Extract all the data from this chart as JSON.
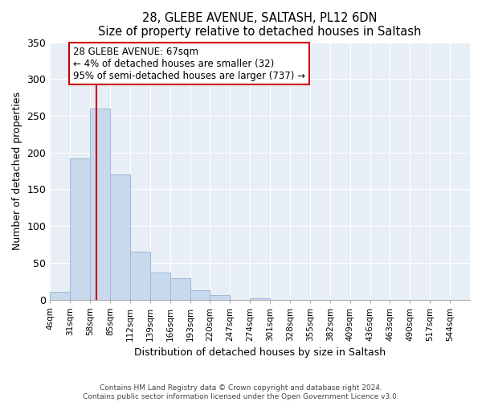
{
  "title": "28, GLEBE AVENUE, SALTASH, PL12 6DN",
  "subtitle": "Size of property relative to detached houses in Saltash",
  "xlabel": "Distribution of detached houses by size in Saltash",
  "ylabel": "Number of detached properties",
  "bin_labels": [
    "4sqm",
    "31sqm",
    "58sqm",
    "85sqm",
    "112sqm",
    "139sqm",
    "166sqm",
    "193sqm",
    "220sqm",
    "247sqm",
    "274sqm",
    "301sqm",
    "328sqm",
    "355sqm",
    "382sqm",
    "409sqm",
    "436sqm",
    "463sqm",
    "490sqm",
    "517sqm",
    "544sqm"
  ],
  "bar_heights": [
    10,
    192,
    260,
    170,
    65,
    37,
    29,
    13,
    6,
    0,
    2,
    0,
    0,
    0,
    0,
    0,
    0,
    0,
    0,
    0,
    0
  ],
  "bar_color": "#c8d9ed",
  "bar_edge_color": "#a0b8d8",
  "bg_color": "#e8eef5",
  "ylim": [
    0,
    350
  ],
  "yticks": [
    0,
    50,
    100,
    150,
    200,
    250,
    300,
    350
  ],
  "vline_x": 67,
  "vline_color": "#cc0000",
  "annotation_lines": [
    "28 GLEBE AVENUE: 67sqm",
    "← 4% of detached houses are smaller (32)",
    "95% of semi-detached houses are larger (737) →"
  ],
  "footer_line1": "Contains HM Land Registry data © Crown copyright and database right 2024.",
  "footer_line2": "Contains public sector information licensed under the Open Government Licence v3.0.",
  "bin_edges": [
    4,
    31,
    58,
    85,
    112,
    139,
    166,
    193,
    220,
    247,
    274,
    301,
    328,
    355,
    382,
    409,
    436,
    463,
    490,
    517,
    544
  ],
  "bin_width": 27
}
